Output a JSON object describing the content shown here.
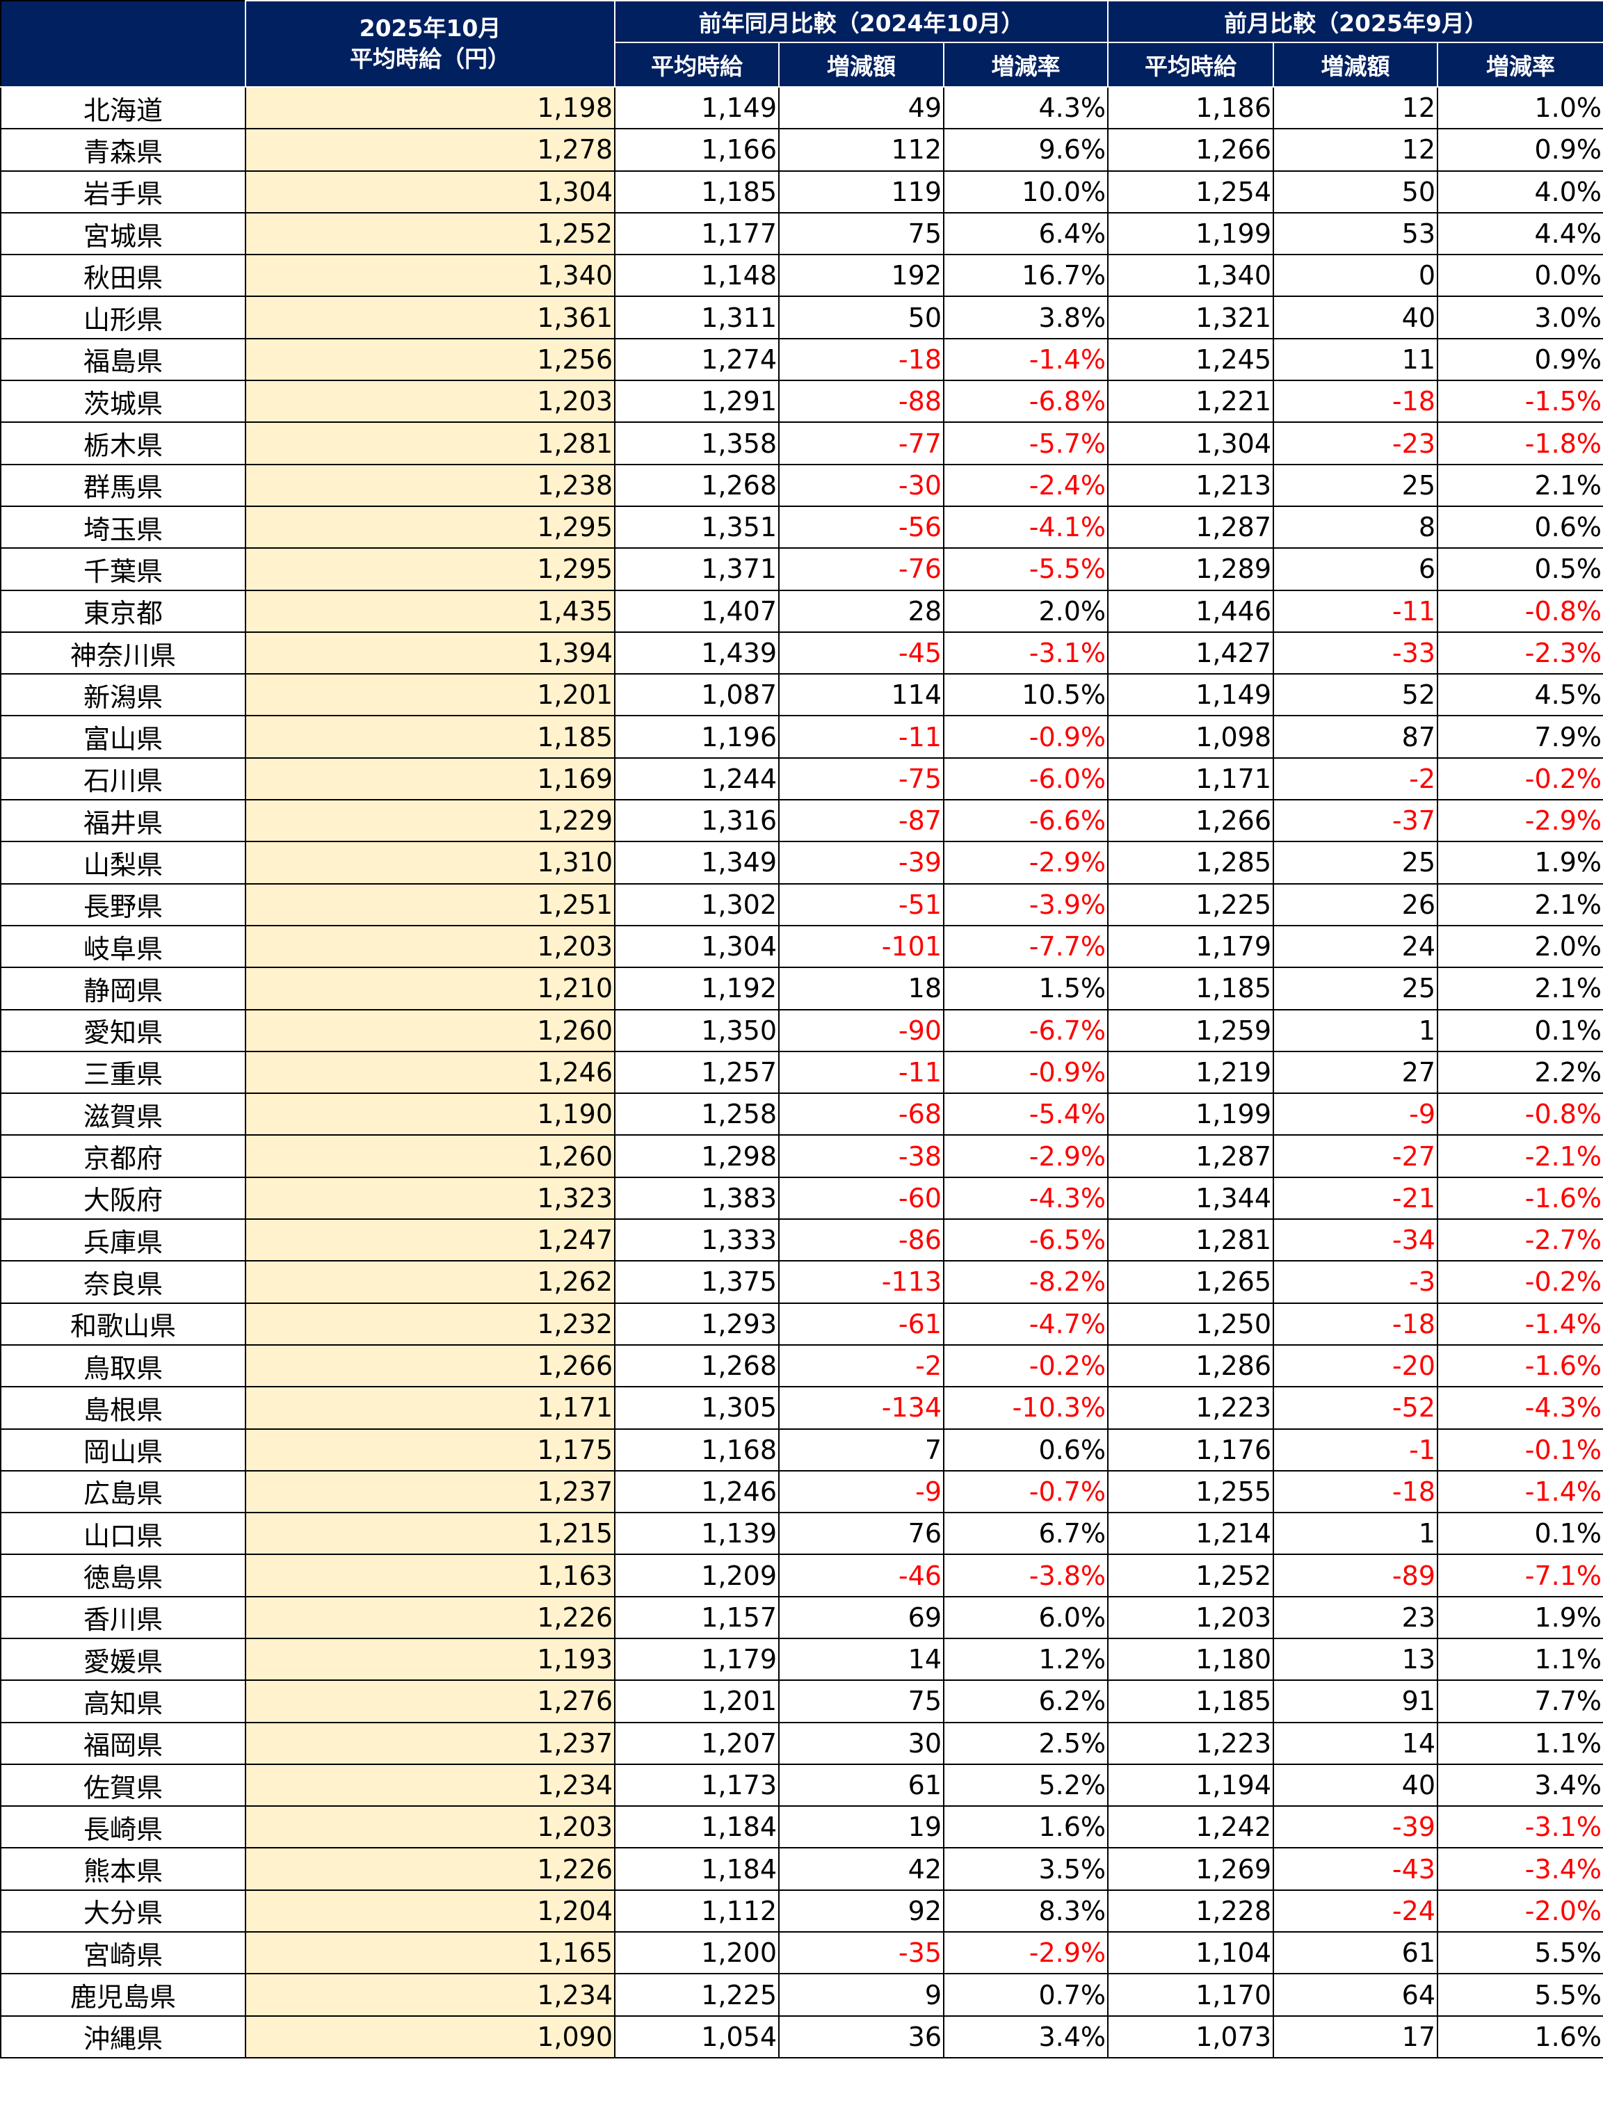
{
  "header": {
    "current_title_line1": "2025年10月",
    "current_title_line2": "平均時給（円）",
    "yoy_group": "前年同月比較（2024年10月）",
    "mom_group": "前月比較（2025年9月）",
    "sub_avg": "平均時給",
    "sub_diff": "増減額",
    "sub_rate": "増減率"
  },
  "colors": {
    "header_bg": "#012060",
    "current_bg": "#FFF2CC",
    "negative": "#FF0000"
  },
  "rows": [
    [
      "北海道",
      "1,198",
      "1,149",
      "49",
      "4.3%",
      "1,186",
      "12",
      "1.0%"
    ],
    [
      "青森県",
      "1,278",
      "1,166",
      "112",
      "9.6%",
      "1,266",
      "12",
      "0.9%"
    ],
    [
      "岩手県",
      "1,304",
      "1,185",
      "119",
      "10.0%",
      "1,254",
      "50",
      "4.0%"
    ],
    [
      "宮城県",
      "1,252",
      "1,177",
      "75",
      "6.4%",
      "1,199",
      "53",
      "4.4%"
    ],
    [
      "秋田県",
      "1,340",
      "1,148",
      "192",
      "16.7%",
      "1,340",
      "0",
      "0.0%"
    ],
    [
      "山形県",
      "1,361",
      "1,311",
      "50",
      "3.8%",
      "1,321",
      "40",
      "3.0%"
    ],
    [
      "福島県",
      "1,256",
      "1,274",
      "-18",
      "-1.4%",
      "1,245",
      "11",
      "0.9%"
    ],
    [
      "茨城県",
      "1,203",
      "1,291",
      "-88",
      "-6.8%",
      "1,221",
      "-18",
      "-1.5%"
    ],
    [
      "栃木県",
      "1,281",
      "1,358",
      "-77",
      "-5.7%",
      "1,304",
      "-23",
      "-1.8%"
    ],
    [
      "群馬県",
      "1,238",
      "1,268",
      "-30",
      "-2.4%",
      "1,213",
      "25",
      "2.1%"
    ],
    [
      "埼玉県",
      "1,295",
      "1,351",
      "-56",
      "-4.1%",
      "1,287",
      "8",
      "0.6%"
    ],
    [
      "千葉県",
      "1,295",
      "1,371",
      "-76",
      "-5.5%",
      "1,289",
      "6",
      "0.5%"
    ],
    [
      "東京都",
      "1,435",
      "1,407",
      "28",
      "2.0%",
      "1,446",
      "-11",
      "-0.8%"
    ],
    [
      "神奈川県",
      "1,394",
      "1,439",
      "-45",
      "-3.1%",
      "1,427",
      "-33",
      "-2.3%"
    ],
    [
      "新潟県",
      "1,201",
      "1,087",
      "114",
      "10.5%",
      "1,149",
      "52",
      "4.5%"
    ],
    [
      "富山県",
      "1,185",
      "1,196",
      "-11",
      "-0.9%",
      "1,098",
      "87",
      "7.9%"
    ],
    [
      "石川県",
      "1,169",
      "1,244",
      "-75",
      "-6.0%",
      "1,171",
      "-2",
      "-0.2%"
    ],
    [
      "福井県",
      "1,229",
      "1,316",
      "-87",
      "-6.6%",
      "1,266",
      "-37",
      "-2.9%"
    ],
    [
      "山梨県",
      "1,310",
      "1,349",
      "-39",
      "-2.9%",
      "1,285",
      "25",
      "1.9%"
    ],
    [
      "長野県",
      "1,251",
      "1,302",
      "-51",
      "-3.9%",
      "1,225",
      "26",
      "2.1%"
    ],
    [
      "岐阜県",
      "1,203",
      "1,304",
      "-101",
      "-7.7%",
      "1,179",
      "24",
      "2.0%"
    ],
    [
      "静岡県",
      "1,210",
      "1,192",
      "18",
      "1.5%",
      "1,185",
      "25",
      "2.1%"
    ],
    [
      "愛知県",
      "1,260",
      "1,350",
      "-90",
      "-6.7%",
      "1,259",
      "1",
      "0.1%"
    ],
    [
      "三重県",
      "1,246",
      "1,257",
      "-11",
      "-0.9%",
      "1,219",
      "27",
      "2.2%"
    ],
    [
      "滋賀県",
      "1,190",
      "1,258",
      "-68",
      "-5.4%",
      "1,199",
      "-9",
      "-0.8%"
    ],
    [
      "京都府",
      "1,260",
      "1,298",
      "-38",
      "-2.9%",
      "1,287",
      "-27",
      "-2.1%"
    ],
    [
      "大阪府",
      "1,323",
      "1,383",
      "-60",
      "-4.3%",
      "1,344",
      "-21",
      "-1.6%"
    ],
    [
      "兵庫県",
      "1,247",
      "1,333",
      "-86",
      "-6.5%",
      "1,281",
      "-34",
      "-2.7%"
    ],
    [
      "奈良県",
      "1,262",
      "1,375",
      "-113",
      "-8.2%",
      "1,265",
      "-3",
      "-0.2%"
    ],
    [
      "和歌山県",
      "1,232",
      "1,293",
      "-61",
      "-4.7%",
      "1,250",
      "-18",
      "-1.4%"
    ],
    [
      "鳥取県",
      "1,266",
      "1,268",
      "-2",
      "-0.2%",
      "1,286",
      "-20",
      "-1.6%"
    ],
    [
      "島根県",
      "1,171",
      "1,305",
      "-134",
      "-10.3%",
      "1,223",
      "-52",
      "-4.3%"
    ],
    [
      "岡山県",
      "1,175",
      "1,168",
      "7",
      "0.6%",
      "1,176",
      "-1",
      "-0.1%"
    ],
    [
      "広島県",
      "1,237",
      "1,246",
      "-9",
      "-0.7%",
      "1,255",
      "-18",
      "-1.4%"
    ],
    [
      "山口県",
      "1,215",
      "1,139",
      "76",
      "6.7%",
      "1,214",
      "1",
      "0.1%"
    ],
    [
      "徳島県",
      "1,163",
      "1,209",
      "-46",
      "-3.8%",
      "1,252",
      "-89",
      "-7.1%"
    ],
    [
      "香川県",
      "1,226",
      "1,157",
      "69",
      "6.0%",
      "1,203",
      "23",
      "1.9%"
    ],
    [
      "愛媛県",
      "1,193",
      "1,179",
      "14",
      "1.2%",
      "1,180",
      "13",
      "1.1%"
    ],
    [
      "高知県",
      "1,276",
      "1,201",
      "75",
      "6.2%",
      "1,185",
      "91",
      "7.7%"
    ],
    [
      "福岡県",
      "1,237",
      "1,207",
      "30",
      "2.5%",
      "1,223",
      "14",
      "1.1%"
    ],
    [
      "佐賀県",
      "1,234",
      "1,173",
      "61",
      "5.2%",
      "1,194",
      "40",
      "3.4%"
    ],
    [
      "長崎県",
      "1,203",
      "1,184",
      "19",
      "1.6%",
      "1,242",
      "-39",
      "-3.1%"
    ],
    [
      "熊本県",
      "1,226",
      "1,184",
      "42",
      "3.5%",
      "1,269",
      "-43",
      "-3.4%"
    ],
    [
      "大分県",
      "1,204",
      "1,112",
      "92",
      "8.3%",
      "1,228",
      "-24",
      "-2.0%"
    ],
    [
      "宮崎県",
      "1,165",
      "1,200",
      "-35",
      "-2.9%",
      "1,104",
      "61",
      "5.5%"
    ],
    [
      "鹿児島県",
      "1,234",
      "1,225",
      "9",
      "0.7%",
      "1,170",
      "64",
      "5.5%"
    ],
    [
      "沖縄県",
      "1,090",
      "1,054",
      "36",
      "3.4%",
      "1,073",
      "17",
      "1.6%"
    ]
  ]
}
